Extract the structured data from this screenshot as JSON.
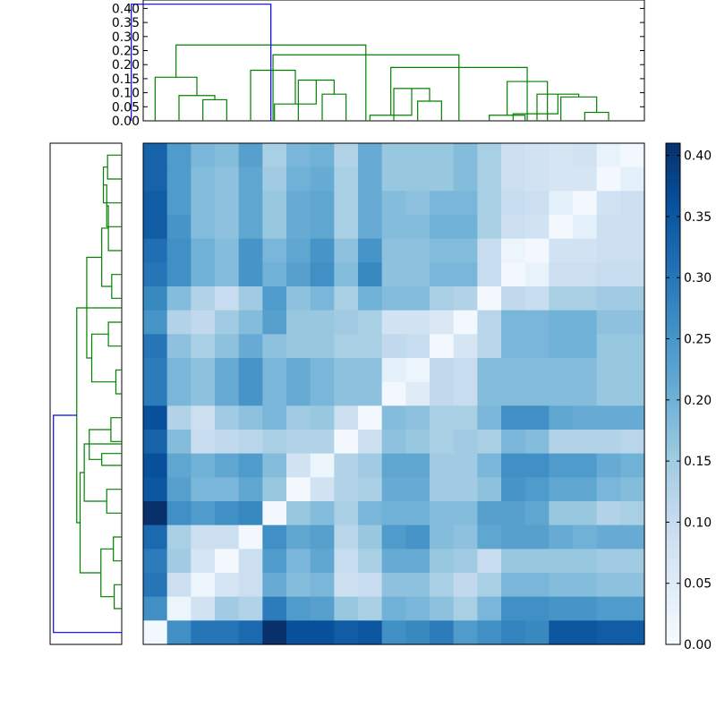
{
  "chart_data": [
    {
      "type": "dendrogram",
      "orientation": "top",
      "y_ticks": [
        "0.00",
        "0.05",
        "0.10",
        "0.15",
        "0.20",
        "0.25",
        "0.30",
        "0.35",
        "0.40"
      ],
      "ylim": [
        0,
        0.43
      ],
      "leaf_count": 21,
      "link_colors": {
        "main": "#008000",
        "root": "#0000ff"
      },
      "links": [
        {
          "a": 18,
          "b": 19,
          "h": 0.03,
          "color": "main"
        },
        {
          "a": 17,
          "b": 18.5,
          "h": 0.085,
          "color": "main"
        },
        {
          "a": 16,
          "b": 17.75,
          "h": 0.095,
          "color": "main"
        },
        {
          "a": 15,
          "b": 16.875,
          "h": 0.025,
          "color": "main"
        },
        {
          "a": 14,
          "b": 15.5,
          "h": 0.02,
          "color": "main"
        },
        {
          "a": 14.75,
          "b": 16.4375,
          "h": 0.14,
          "color": "main"
        },
        {
          "a": 11,
          "b": 12,
          "h": 0.07,
          "color": "main"
        },
        {
          "a": 10,
          "b": 11.5,
          "h": 0.115,
          "color": "main"
        },
        {
          "a": 9,
          "b": 10.75,
          "h": 0.02,
          "color": "main"
        },
        {
          "a": 9.875,
          "b": 15.59,
          "h": 0.19,
          "color": "main"
        },
        {
          "a": 7,
          "b": 8,
          "h": 0.095,
          "color": "main"
        },
        {
          "a": 6,
          "b": 7.5,
          "h": 0.145,
          "color": "main"
        },
        {
          "a": 5,
          "b": 6.75,
          "h": 0.06,
          "color": "main"
        },
        {
          "a": 4,
          "b": 5.875,
          "h": 0.18,
          "color": "main"
        },
        {
          "a": 4.94,
          "b": 12.73,
          "h": 0.235,
          "color": "main"
        },
        {
          "a": 2,
          "b": 3,
          "h": 0.075,
          "color": "main"
        },
        {
          "a": 1,
          "b": 2.5,
          "h": 0.09,
          "color": "main"
        },
        {
          "a": 0,
          "b": 1.75,
          "h": 0.155,
          "color": "main"
        },
        {
          "a": 0.875,
          "b": 8.83,
          "h": 0.27,
          "color": "main"
        },
        {
          "a": -1,
          "b": 4.85,
          "h": 0.415,
          "color": "root"
        }
      ]
    },
    {
      "type": "dendrogram",
      "orientation": "left",
      "leaf_count": 21,
      "link_colors": {
        "main": "#008000",
        "root": "#0000ff"
      },
      "links": [
        {
          "a": 0,
          "b": 1,
          "d": 0.085
        },
        {
          "a": 0.5,
          "b": 2,
          "d": 0.11
        },
        {
          "a": 1.25,
          "b": 3,
          "d": 0.09
        },
        {
          "a": 2.125,
          "b": 4,
          "d": 0.08
        },
        {
          "a": 5,
          "b": 6,
          "d": 0.06
        },
        {
          "a": 3.06,
          "b": 5.5,
          "d": 0.12
        },
        {
          "a": 7,
          "b": 8,
          "d": 0.08
        },
        {
          "a": 9,
          "b": 10,
          "d": 0.035
        },
        {
          "a": 7.5,
          "b": 9.5,
          "d": 0.18
        },
        {
          "a": 4.28,
          "b": 8.5,
          "d": 0.21
        },
        {
          "a": 11,
          "b": 12,
          "d": 0.065
        },
        {
          "a": 12.5,
          "b": 13,
          "d": 0.12
        },
        {
          "a": 11.5,
          "b": 12.75,
          "d": 0.195
        },
        {
          "a": 14,
          "b": 15,
          "d": 0.09
        },
        {
          "a": 12.1,
          "b": 14.5,
          "d": 0.225
        },
        {
          "a": 16,
          "b": 17,
          "d": 0.05
        },
        {
          "a": 18,
          "b": 19,
          "d": 0.045
        },
        {
          "a": 16.5,
          "b": 18.5,
          "d": 0.125
        },
        {
          "a": 13.3,
          "b": 17.5,
          "d": 0.25
        },
        {
          "a": 6.4,
          "b": 15.4,
          "d": 0.27
        },
        {
          "a": 20,
          "b": 10.9,
          "d": 0.41,
          "color": "root"
        }
      ]
    },
    {
      "type": "heatmap",
      "rows": 21,
      "cols": 21,
      "vmin": 0.0,
      "vmax": 0.41,
      "colormap": [
        "#f7fbff",
        "#deebf7",
        "#c6dbef",
        "#9ecae1",
        "#6baed6",
        "#4292c6",
        "#2171b5",
        "#08519c",
        "#08306b"
      ],
      "colorbar_ticks": [
        "0.00",
        "0.05",
        "0.10",
        "0.15",
        "0.20",
        "0.25",
        "0.30",
        "0.35",
        "0.40"
      ],
      "values": [
        [
          0.33,
          0.24,
          0.19,
          0.18,
          0.23,
          0.14,
          0.19,
          0.2,
          0.13,
          0.21,
          0.16,
          0.16,
          0.16,
          0.18,
          0.14,
          0.09,
          0.08,
          0.07,
          0.08,
          0.03,
          0.01
        ],
        [
          0.33,
          0.24,
          0.18,
          0.17,
          0.22,
          0.15,
          0.2,
          0.21,
          0.14,
          0.21,
          0.16,
          0.16,
          0.16,
          0.18,
          0.14,
          0.09,
          0.08,
          0.07,
          0.07,
          0.01,
          0.04
        ],
        [
          0.34,
          0.24,
          0.18,
          0.17,
          0.22,
          0.16,
          0.21,
          0.22,
          0.14,
          0.21,
          0.18,
          0.17,
          0.19,
          0.19,
          0.14,
          0.1,
          0.09,
          0.04,
          0.01,
          0.08,
          0.09
        ],
        [
          0.34,
          0.25,
          0.18,
          0.17,
          0.22,
          0.16,
          0.21,
          0.22,
          0.14,
          0.21,
          0.18,
          0.18,
          0.2,
          0.2,
          0.14,
          0.09,
          0.08,
          0.01,
          0.04,
          0.09,
          0.09
        ],
        [
          0.31,
          0.26,
          0.2,
          0.18,
          0.25,
          0.19,
          0.22,
          0.25,
          0.17,
          0.25,
          0.17,
          0.17,
          0.18,
          0.18,
          0.1,
          0.02,
          0.01,
          0.08,
          0.08,
          0.09,
          0.09
        ],
        [
          0.3,
          0.26,
          0.2,
          0.18,
          0.25,
          0.2,
          0.23,
          0.26,
          0.18,
          0.27,
          0.17,
          0.17,
          0.19,
          0.19,
          0.1,
          0.01,
          0.03,
          0.09,
          0.09,
          0.1,
          0.1
        ],
        [
          0.27,
          0.18,
          0.13,
          0.1,
          0.15,
          0.24,
          0.17,
          0.19,
          0.14,
          0.2,
          0.18,
          0.18,
          0.14,
          0.13,
          0.01,
          0.11,
          0.1,
          0.14,
          0.14,
          0.15,
          0.15
        ],
        [
          0.25,
          0.13,
          0.11,
          0.15,
          0.18,
          0.23,
          0.16,
          0.16,
          0.15,
          0.14,
          0.08,
          0.08,
          0.06,
          0.01,
          0.12,
          0.19,
          0.19,
          0.2,
          0.2,
          0.17,
          0.17
        ],
        [
          0.3,
          0.17,
          0.14,
          0.17,
          0.21,
          0.17,
          0.16,
          0.16,
          0.14,
          0.14,
          0.11,
          0.1,
          0.01,
          0.07,
          0.12,
          0.19,
          0.19,
          0.2,
          0.2,
          0.16,
          0.16
        ],
        [
          0.29,
          0.19,
          0.17,
          0.21,
          0.25,
          0.19,
          0.21,
          0.19,
          0.17,
          0.17,
          0.04,
          0.02,
          0.11,
          0.1,
          0.18,
          0.18,
          0.18,
          0.18,
          0.18,
          0.16,
          0.16
        ],
        [
          0.29,
          0.19,
          0.17,
          0.21,
          0.25,
          0.19,
          0.21,
          0.19,
          0.17,
          0.17,
          0.01,
          0.05,
          0.11,
          0.1,
          0.18,
          0.18,
          0.18,
          0.18,
          0.18,
          0.16,
          0.16
        ],
        [
          0.36,
          0.13,
          0.09,
          0.15,
          0.17,
          0.19,
          0.15,
          0.16,
          0.09,
          0.01,
          0.18,
          0.17,
          0.14,
          0.14,
          0.19,
          0.26,
          0.26,
          0.22,
          0.21,
          0.21,
          0.21
        ],
        [
          0.33,
          0.18,
          0.1,
          0.11,
          0.12,
          0.14,
          0.13,
          0.13,
          0.01,
          0.09,
          0.17,
          0.16,
          0.14,
          0.15,
          0.14,
          0.19,
          0.18,
          0.13,
          0.13,
          0.13,
          0.12
        ],
        [
          0.36,
          0.22,
          0.2,
          0.22,
          0.24,
          0.18,
          0.08,
          0.02,
          0.13,
          0.15,
          0.22,
          0.22,
          0.15,
          0.15,
          0.19,
          0.26,
          0.26,
          0.24,
          0.24,
          0.21,
          0.2
        ],
        [
          0.35,
          0.23,
          0.19,
          0.19,
          0.22,
          0.16,
          0.01,
          0.08,
          0.13,
          0.14,
          0.21,
          0.21,
          0.15,
          0.15,
          0.17,
          0.25,
          0.24,
          0.22,
          0.22,
          0.19,
          0.18
        ],
        [
          0.41,
          0.26,
          0.24,
          0.26,
          0.27,
          0.01,
          0.16,
          0.18,
          0.14,
          0.19,
          0.2,
          0.2,
          0.18,
          0.18,
          0.23,
          0.23,
          0.22,
          0.16,
          0.16,
          0.13,
          0.14
        ],
        [
          0.32,
          0.14,
          0.09,
          0.09,
          0.01,
          0.26,
          0.22,
          0.23,
          0.12,
          0.16,
          0.24,
          0.25,
          0.18,
          0.17,
          0.22,
          0.23,
          0.23,
          0.21,
          0.2,
          0.21,
          0.21
        ],
        [
          0.29,
          0.15,
          0.07,
          0.01,
          0.09,
          0.24,
          0.19,
          0.22,
          0.1,
          0.14,
          0.21,
          0.21,
          0.16,
          0.15,
          0.1,
          0.16,
          0.16,
          0.16,
          0.16,
          0.15,
          0.15
        ],
        [
          0.3,
          0.09,
          0.02,
          0.07,
          0.09,
          0.21,
          0.18,
          0.19,
          0.09,
          0.1,
          0.17,
          0.17,
          0.14,
          0.11,
          0.14,
          0.19,
          0.19,
          0.18,
          0.18,
          0.17,
          0.17
        ],
        [
          0.26,
          0.02,
          0.08,
          0.15,
          0.13,
          0.29,
          0.24,
          0.23,
          0.16,
          0.14,
          0.2,
          0.19,
          0.17,
          0.14,
          0.19,
          0.26,
          0.26,
          0.25,
          0.25,
          0.24,
          0.24
        ],
        [
          0.01,
          0.26,
          0.3,
          0.3,
          0.32,
          0.41,
          0.36,
          0.36,
          0.34,
          0.35,
          0.26,
          0.27,
          0.29,
          0.24,
          0.26,
          0.28,
          0.27,
          0.35,
          0.35,
          0.34,
          0.34
        ]
      ]
    }
  ]
}
